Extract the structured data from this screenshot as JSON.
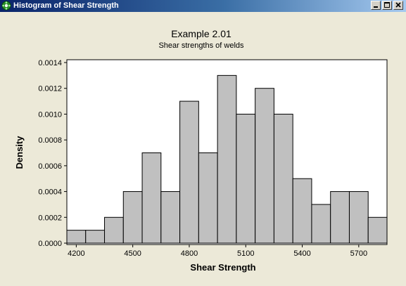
{
  "window": {
    "title": "Histogram of Shear Strength",
    "buttons": {
      "minimize": "minimize",
      "maximize": "maximize",
      "close": "close"
    }
  },
  "chart_data": {
    "type": "bar",
    "subtype": "histogram",
    "title": "Example 2.01",
    "subtitle": "Shear strengths of welds",
    "xlabel": "Shear Strength",
    "ylabel": "Density",
    "bin_width": 100,
    "bins": [
      {
        "center": 4200,
        "density": 0.0001
      },
      {
        "center": 4300,
        "density": 0.0001
      },
      {
        "center": 4400,
        "density": 0.0002
      },
      {
        "center": 4500,
        "density": 0.0004
      },
      {
        "center": 4600,
        "density": 0.0007
      },
      {
        "center": 4700,
        "density": 0.0004
      },
      {
        "center": 4800,
        "density": 0.0011
      },
      {
        "center": 4900,
        "density": 0.0007
      },
      {
        "center": 5000,
        "density": 0.0013
      },
      {
        "center": 5100,
        "density": 0.001
      },
      {
        "center": 5200,
        "density": 0.0012
      },
      {
        "center": 5300,
        "density": 0.001
      },
      {
        "center": 5400,
        "density": 0.0005
      },
      {
        "center": 5500,
        "density": 0.0003
      },
      {
        "center": 5600,
        "density": 0.0004
      },
      {
        "center": 5700,
        "density": 0.0004
      },
      {
        "center": 5800,
        "density": 0.0002
      }
    ],
    "xlim": [
      4150,
      5850
    ],
    "ylim": [
      0,
      0.0014
    ],
    "xticks": [
      4200,
      4500,
      4800,
      5100,
      5400,
      5700
    ],
    "xtick_labels": [
      "4200",
      "4500",
      "4800",
      "5100",
      "5400",
      "5700"
    ],
    "yticks": [
      0,
      0.0002,
      0.0004,
      0.0006,
      0.0008,
      0.001,
      0.0012,
      0.0014
    ],
    "ytick_labels": [
      "0.0000",
      "0.0002",
      "0.0004",
      "0.0006",
      "0.0008",
      "0.0010",
      "0.0012",
      "0.0014"
    ],
    "grid": false,
    "colors": {
      "bar_fill": "#c0c0c0",
      "bar_stroke": "#000000",
      "plot_background": "#ffffff",
      "figure_background": "#ece9d8"
    }
  }
}
